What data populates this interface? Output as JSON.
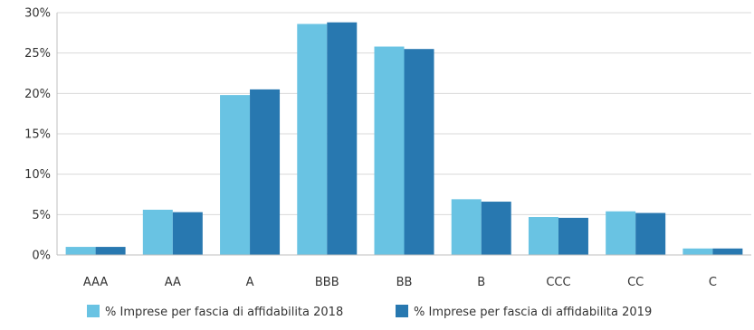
{
  "chart_data": {
    "type": "bar",
    "categories": [
      "AAA",
      "AA",
      "A",
      "BBB",
      "BB",
      "B",
      "CCC",
      "CC",
      "C"
    ],
    "series": [
      {
        "name": "% Imprese per fascia di affidabilita 2018",
        "color": "#69c3e3",
        "values": [
          1.0,
          5.6,
          19.8,
          28.6,
          25.8,
          6.9,
          4.7,
          5.4,
          0.8
        ]
      },
      {
        "name": "% Imprese per fascia di affidabilita 2019",
        "color": "#2878b0",
        "values": [
          1.0,
          5.3,
          20.5,
          28.8,
          25.5,
          6.6,
          4.6,
          5.2,
          0.8
        ]
      }
    ],
    "yticks": [
      "0%",
      "5%",
      "10%",
      "15%",
      "20%",
      "25%",
      "30%"
    ],
    "ylim": [
      0,
      30
    ],
    "grid": true,
    "legend_position": "bottom-center"
  }
}
